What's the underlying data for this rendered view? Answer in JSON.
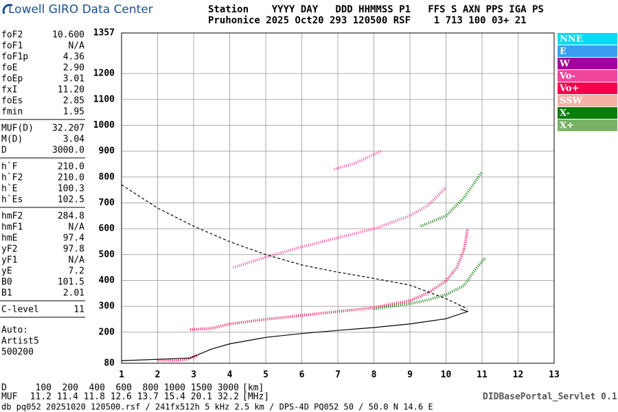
{
  "header": {
    "logo": "Lowell GIRO Data Center",
    "line1": "Station    YYYY DAY   DDD HHMMSS P1   FFS S AXN PPS IGA PS",
    "line2": "Pruhonice 2025 Oct20 293 120500 RSF    1 713 100 03+ 21"
  },
  "params": [
    [
      [
        "foF2",
        "10.600"
      ],
      [
        "foF1",
        "N/A"
      ],
      [
        "foF1p",
        "4.36"
      ],
      [
        "foE",
        "2.90"
      ],
      [
        "foEp",
        "3.01"
      ],
      [
        "fxI",
        "11.20"
      ],
      [
        "foEs",
        "2.85"
      ],
      [
        "fmin",
        "1.95"
      ]
    ],
    [
      [
        "MUF(D)",
        "32.207"
      ],
      [
        "M(D)",
        "3.04"
      ],
      [
        "D",
        "3000.0"
      ]
    ],
    [
      [
        "h`F",
        "210.0"
      ],
      [
        "h`F2",
        "210.0"
      ],
      [
        "h`E",
        "100.3"
      ],
      [
        "h`Es",
        "102.5"
      ]
    ],
    [
      [
        "hmF2",
        "284.8"
      ],
      [
        "hmF1",
        "N/A"
      ],
      [
        "hmE",
        "97.4"
      ],
      [
        "yF2",
        "97.8"
      ],
      [
        "yF1",
        "N/A"
      ],
      [
        "yE",
        "7.2"
      ],
      [
        "B0",
        "101.5"
      ],
      [
        "B1",
        "2.01"
      ]
    ],
    [
      [
        "C-level",
        "11"
      ]
    ]
  ],
  "auto": [
    "Auto:",
    "Artist5",
    "500200"
  ],
  "plot": {
    "xlim": [
      1,
      13
    ],
    "ylim": [
      80,
      1357
    ],
    "xticks": [
      1,
      2,
      3,
      4,
      5,
      6,
      7,
      8,
      9,
      10,
      11,
      12,
      13
    ],
    "yticks": [
      80,
      200,
      300,
      400,
      500,
      600,
      700,
      800,
      900,
      1000,
      1100,
      1200,
      1357
    ],
    "legend": [
      {
        "name": "NNE",
        "color": "#00ddf5"
      },
      {
        "name": "E",
        "color": "#3a9ef0"
      },
      {
        "name": "W",
        "color": "#a3009e"
      },
      {
        "name": "Vo-",
        "color": "#f0469c"
      },
      {
        "name": "Vo+",
        "color": "#f5004a"
      },
      {
        "name": "SSW",
        "color": "#f7b1a6"
      },
      {
        "name": "X-",
        "color": "#0b7d0b"
      },
      {
        "name": "X+",
        "color": "#79b264"
      }
    ],
    "traces": [
      {
        "color": "#f5004a",
        "style": "dots",
        "points": [
          [
            2.9,
            210
          ],
          [
            3.5,
            215
          ],
          [
            4,
            232
          ],
          [
            5,
            250
          ],
          [
            6,
            265
          ],
          [
            7,
            280
          ],
          [
            8,
            295
          ],
          [
            9,
            322
          ],
          [
            9.5,
            352
          ],
          [
            10,
            398
          ],
          [
            10.3,
            450
          ],
          [
            10.5,
            520
          ],
          [
            10.6,
            600
          ]
        ]
      },
      {
        "color": "#0b7d0b",
        "style": "dots",
        "points": [
          [
            8,
            290
          ],
          [
            9,
            310
          ],
          [
            9.5,
            325
          ],
          [
            10,
            345
          ],
          [
            10.5,
            380
          ],
          [
            10.8,
            440
          ],
          [
            11.1,
            490
          ]
        ]
      },
      {
        "color": "#f0469c",
        "style": "dots",
        "points": [
          [
            4.1,
            450
          ],
          [
            5,
            490
          ],
          [
            6,
            530
          ],
          [
            7,
            565
          ],
          [
            8,
            600
          ],
          [
            9,
            650
          ],
          [
            9.5,
            690
          ],
          [
            10,
            760
          ]
        ]
      },
      {
        "color": "#0b7d0b",
        "style": "dots",
        "points": [
          [
            9.3,
            610
          ],
          [
            10,
            650
          ],
          [
            10.5,
            720
          ],
          [
            11,
            820
          ]
        ]
      },
      {
        "color": "#f0469c",
        "style": "dots",
        "points": [
          [
            6.9,
            830
          ],
          [
            7.5,
            855
          ],
          [
            8.2,
            900
          ]
        ]
      },
      {
        "color": "#f5004a",
        "style": "dots",
        "points": [
          [
            2,
            92
          ],
          [
            2.5,
            90
          ],
          [
            2.8,
            95
          ],
          [
            3.1,
            110
          ]
        ]
      },
      {
        "color": "#000000",
        "style": "solid",
        "points": [
          [
            1,
            90
          ],
          [
            2.9,
            100
          ],
          [
            3.5,
            135
          ],
          [
            4,
            155
          ],
          [
            5,
            180
          ],
          [
            6,
            195
          ],
          [
            7,
            207
          ],
          [
            8,
            218
          ],
          [
            9,
            232
          ],
          [
            10,
            252
          ],
          [
            10.6,
            280
          ],
          [
            10.4,
            290
          ]
        ]
      },
      {
        "color": "#000000",
        "style": "dashed",
        "points": [
          [
            1,
            770
          ],
          [
            2,
            680
          ],
          [
            3,
            610
          ],
          [
            4,
            550
          ],
          [
            5,
            500
          ],
          [
            6,
            460
          ],
          [
            7,
            432
          ],
          [
            8,
            408
          ],
          [
            9,
            382
          ],
          [
            10,
            330
          ],
          [
            10.6,
            290
          ]
        ]
      }
    ]
  },
  "footer": {
    "d_label": "D",
    "d_values": [
      100,
      200,
      400,
      600,
      800,
      1000,
      1500,
      3000
    ],
    "d_unit": "[km]",
    "muf_label": "MUF",
    "muf_values": [
      11.2,
      11.4,
      11.8,
      12.6,
      13.7,
      15.4,
      20.1,
      32.2
    ],
    "muf_unit": "[MHz]",
    "servlet": "DIDBasePortal_Servlet 0.1",
    "source": "db pq052 20251020 120500.rsf / 241fx512h 5 kHz 2.5 km / DPS-4D PQ052 50 / 50.0 N 14.6 E"
  }
}
